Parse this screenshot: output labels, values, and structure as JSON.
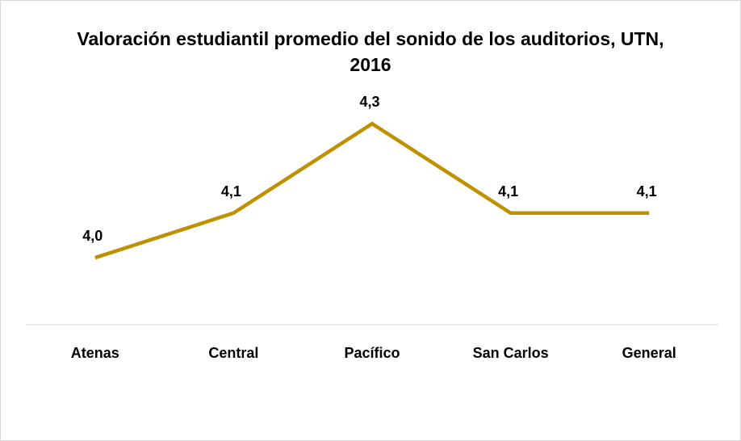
{
  "chart_data": {
    "type": "line",
    "title": "Valoración estudiantil promedio del sonido de los auditorios, UTN, 2016",
    "categories": [
      "Atenas",
      "Central",
      "Pacífico",
      "San Carlos",
      "General"
    ],
    "values": [
      4.0,
      4.1,
      4.3,
      4.1,
      4.1
    ],
    "value_labels": [
      "4,0",
      "4,1",
      "4,3",
      "4,1",
      "4,1"
    ],
    "color": "#bf9000",
    "ylim": [
      3.85,
      4.35
    ]
  }
}
